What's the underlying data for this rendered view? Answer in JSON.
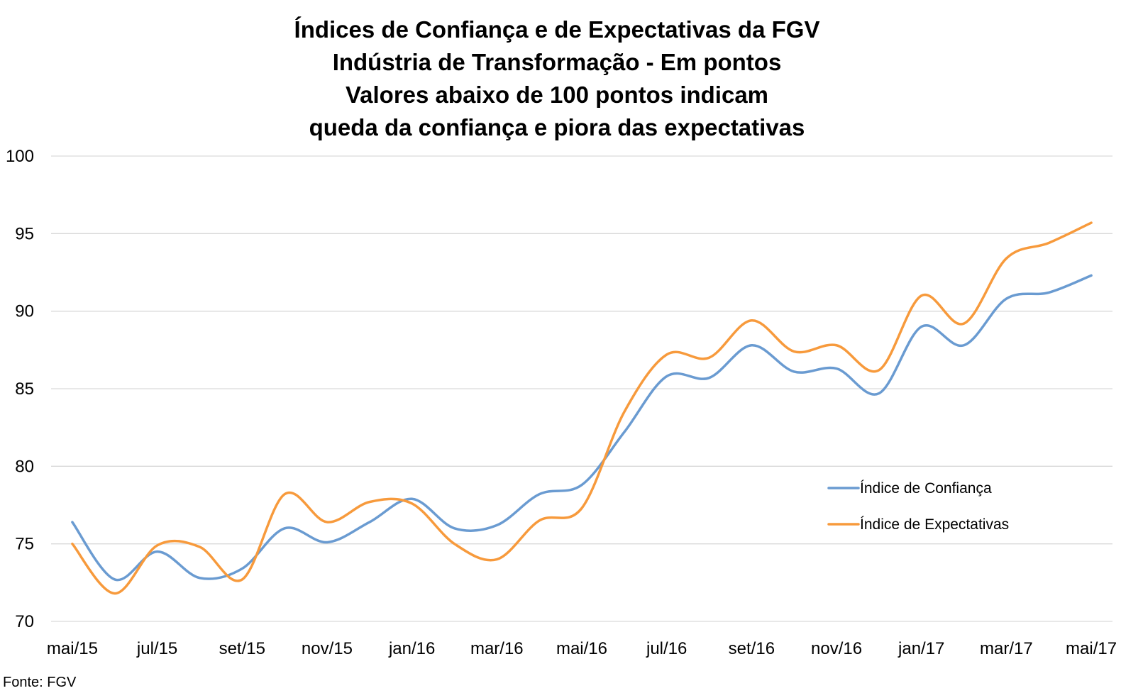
{
  "chart_data": {
    "type": "line",
    "title_lines": [
      "Índices de Confiança e de Expectativas da FGV",
      "Indústria de Transformação - Em pontos",
      "Valores abaixo de 100 pontos indicam",
      "queda da confiança e piora das expectativas"
    ],
    "source": "Fonte: FGV",
    "x": [
      "mai/15",
      "jun/15",
      "jul/15",
      "ago/15",
      "set/15",
      "out/15",
      "nov/15",
      "dez/15",
      "jan/16",
      "fev/16",
      "mar/16",
      "abr/16",
      "mai/16",
      "jun/16",
      "jul/16",
      "ago/16",
      "set/16",
      "out/16",
      "nov/16",
      "dez/16",
      "jan/17",
      "fev/17",
      "mar/17",
      "abr/17",
      "mai/17"
    ],
    "x_tick_labels": [
      "mai/15",
      "jul/15",
      "set/15",
      "nov/15",
      "jan/16",
      "mar/16",
      "mai/16",
      "jul/16",
      "set/16",
      "nov/16",
      "jan/17",
      "mar/17",
      "mai/17"
    ],
    "y_ticks": [
      "70",
      "75",
      "80",
      "85",
      "90",
      "95",
      "100"
    ],
    "ylim": [
      70,
      100
    ],
    "grid": true,
    "legend_position": "right-middle",
    "series": [
      {
        "name": "Índice de Confiança",
        "color": "#6a9bd1",
        "values": [
          76.4,
          72.7,
          74.5,
          72.8,
          73.4,
          76.0,
          75.1,
          76.4,
          77.9,
          76.0,
          76.2,
          78.2,
          78.8,
          82.2,
          85.8,
          85.7,
          87.8,
          86.1,
          86.3,
          84.7,
          89.0,
          87.8,
          90.8,
          91.2,
          92.3
        ]
      },
      {
        "name": "Índice de Expectativas",
        "color": "#f79a3c",
        "values": [
          75.0,
          71.8,
          74.9,
          74.8,
          72.7,
          78.2,
          76.4,
          77.7,
          77.6,
          75.0,
          74.0,
          76.5,
          77.3,
          83.5,
          87.2,
          87.0,
          89.4,
          87.4,
          87.8,
          86.2,
          91.0,
          89.2,
          93.4,
          94.4,
          95.7
        ]
      }
    ]
  }
}
